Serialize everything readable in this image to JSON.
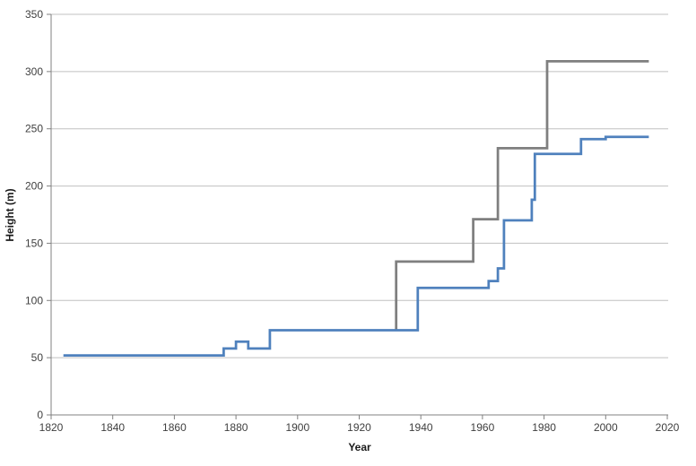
{
  "chart_data": {
    "type": "line",
    "subtype": "step",
    "title": "",
    "xlabel": "Year",
    "ylabel": "Height (m)",
    "xlim": [
      1820,
      2020
    ],
    "ylim": [
      0,
      350
    ],
    "x_ticks": [
      1820,
      1840,
      1860,
      1880,
      1900,
      1920,
      1940,
      1960,
      1980,
      2000,
      2020
    ],
    "y_ticks": [
      0,
      50,
      100,
      150,
      200,
      250,
      300,
      350
    ],
    "grid": "horizontal",
    "legend": "none",
    "colors": {
      "gridline": "#c0c0c0",
      "axis_line": "#808080",
      "tick_text": "#3f3f3f",
      "series_gray": "#7f7f7f",
      "series_blue": "#4f81bd"
    },
    "series": [
      {
        "id": "series-1-gray",
        "color": "#7f7f7f",
        "points": [
          [
            1932,
            74
          ],
          [
            1932,
            134
          ],
          [
            1957,
            134
          ],
          [
            1957,
            171
          ],
          [
            1965,
            171
          ],
          [
            1965,
            233
          ],
          [
            1981,
            233
          ],
          [
            1981,
            309
          ],
          [
            2014,
            309
          ]
        ]
      },
      {
        "id": "series-2-blue",
        "color": "#4f81bd",
        "points": [
          [
            1824,
            52
          ],
          [
            1876,
            52
          ],
          [
            1876,
            58
          ],
          [
            1880,
            58
          ],
          [
            1880,
            64
          ],
          [
            1884,
            64
          ],
          [
            1884,
            58
          ],
          [
            1891,
            58
          ],
          [
            1891,
            74
          ],
          [
            1939,
            74
          ],
          [
            1939,
            111
          ],
          [
            1962,
            111
          ],
          [
            1962,
            117
          ],
          [
            1965,
            117
          ],
          [
            1965,
            128
          ],
          [
            1967,
            128
          ],
          [
            1967,
            170
          ],
          [
            1976,
            170
          ],
          [
            1976,
            188
          ],
          [
            1977,
            188
          ],
          [
            1977,
            228
          ],
          [
            1992,
            228
          ],
          [
            1992,
            241
          ],
          [
            2000,
            241
          ],
          [
            2000,
            243
          ],
          [
            2014,
            243
          ]
        ]
      }
    ]
  }
}
